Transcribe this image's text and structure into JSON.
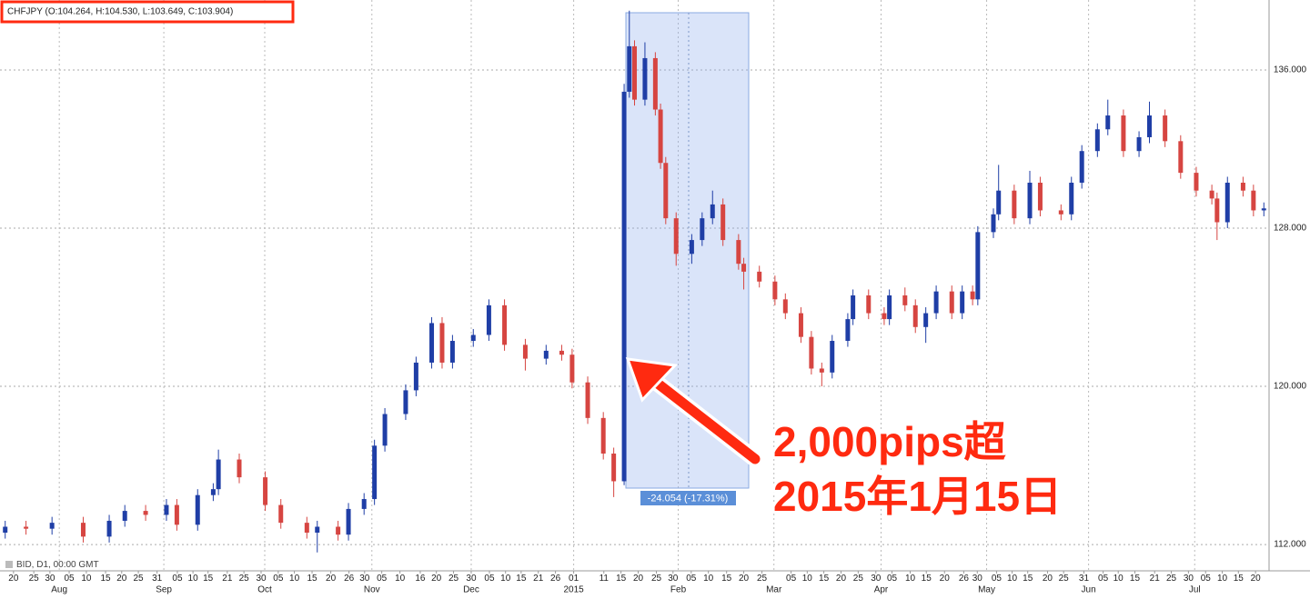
{
  "chart_data": {
    "type": "candlestick",
    "title": "CHFJPY (O:104.264, H:104.530, L:103.649, C:103.904)",
    "footer": "BID, D1, 00:00 GMT",
    "measure_label": "-24.054 (-17.31%)",
    "annotations": [
      "2,000pips超",
      "2015年1月15日"
    ],
    "up_color": "#1f3ea6",
    "down_color": "#d64541",
    "grid": true,
    "ylim": [
      110.67,
      139.54
    ],
    "yticks": [
      {
        "value": 112,
        "label": "112.000"
      },
      {
        "value": 120,
        "label": "120.000"
      },
      {
        "value": 128,
        "label": "128.000"
      },
      {
        "value": 136,
        "label": "136.000"
      }
    ],
    "xlim": [
      0,
      244
    ],
    "xticks": [
      {
        "value": 2.6,
        "label": "20"
      },
      {
        "value": 6.5,
        "label": "25"
      },
      {
        "value": 9.6,
        "label": "30"
      },
      {
        "value": 13.3,
        "label": "05"
      },
      {
        "value": 16.6,
        "label": "10"
      },
      {
        "value": 20.3,
        "label": "15"
      },
      {
        "value": 23.4,
        "label": "20"
      },
      {
        "value": 26.6,
        "label": "25"
      },
      {
        "value": 30.2,
        "label": "31"
      },
      {
        "value": 34.1,
        "label": "05"
      },
      {
        "value": 37.1,
        "label": "10"
      },
      {
        "value": 40.0,
        "label": "15"
      },
      {
        "value": 43.7,
        "label": "21"
      },
      {
        "value": 46.9,
        "label": "25"
      },
      {
        "value": 50.2,
        "label": "30"
      },
      {
        "value": 53.5,
        "label": "05"
      },
      {
        "value": 56.6,
        "label": "10"
      },
      {
        "value": 60.0,
        "label": "15"
      },
      {
        "value": 63.6,
        "label": "20"
      },
      {
        "value": 67.1,
        "label": "26"
      },
      {
        "value": 70.1,
        "label": "30"
      },
      {
        "value": 73.4,
        "label": "05"
      },
      {
        "value": 76.9,
        "label": "10"
      },
      {
        "value": 80.8,
        "label": "16"
      },
      {
        "value": 83.9,
        "label": "20"
      },
      {
        "value": 87.2,
        "label": "25"
      },
      {
        "value": 90.6,
        "label": "30"
      },
      {
        "value": 94.1,
        "label": "05"
      },
      {
        "value": 97.2,
        "label": "10"
      },
      {
        "value": 100.2,
        "label": "15"
      },
      {
        "value": 103.5,
        "label": "21"
      },
      {
        "value": 106.8,
        "label": "26"
      },
      {
        "value": 110.3,
        "label": "01"
      },
      {
        "value": 116.1,
        "label": "11"
      },
      {
        "value": 119.4,
        "label": "15"
      },
      {
        "value": 122.7,
        "label": "20"
      },
      {
        "value": 126.2,
        "label": "25"
      },
      {
        "value": 129.4,
        "label": "30"
      },
      {
        "value": 132.9,
        "label": "05"
      },
      {
        "value": 136.2,
        "label": "10"
      },
      {
        "value": 139.7,
        "label": "15"
      },
      {
        "value": 143.0,
        "label": "20"
      },
      {
        "value": 146.5,
        "label": "25"
      },
      {
        "value": 152.1,
        "label": "05"
      },
      {
        "value": 155.2,
        "label": "10"
      },
      {
        "value": 158.4,
        "label": "15"
      },
      {
        "value": 161.7,
        "label": "20"
      },
      {
        "value": 165.0,
        "label": "25"
      },
      {
        "value": 168.4,
        "label": "30"
      },
      {
        "value": 171.5,
        "label": "05"
      },
      {
        "value": 175.0,
        "label": "10"
      },
      {
        "value": 178.1,
        "label": "15"
      },
      {
        "value": 181.6,
        "label": "20"
      },
      {
        "value": 185.3,
        "label": "26"
      },
      {
        "value": 187.9,
        "label": "30"
      },
      {
        "value": 191.6,
        "label": "05"
      },
      {
        "value": 194.6,
        "label": "10"
      },
      {
        "value": 197.6,
        "label": "15"
      },
      {
        "value": 201.4,
        "label": "20"
      },
      {
        "value": 204.5,
        "label": "25"
      },
      {
        "value": 208.4,
        "label": "31"
      },
      {
        "value": 212.1,
        "label": "05"
      },
      {
        "value": 215.0,
        "label": "10"
      },
      {
        "value": 218.2,
        "label": "15"
      },
      {
        "value": 222.0,
        "label": "21"
      },
      {
        "value": 225.2,
        "label": "25"
      },
      {
        "value": 228.5,
        "label": "30"
      },
      {
        "value": 231.8,
        "label": "05"
      },
      {
        "value": 235.0,
        "label": "10"
      },
      {
        "value": 238.1,
        "label": "15"
      },
      {
        "value": 241.4,
        "label": "20"
      }
    ],
    "month_labels": [
      {
        "value": 11.4,
        "label": "Aug"
      },
      {
        "value": 31.5,
        "label": "Sep"
      },
      {
        "value": 50.9,
        "label": "Oct"
      },
      {
        "value": 71.5,
        "label": "Nov"
      },
      {
        "value": 90.6,
        "label": "Dec"
      },
      {
        "value": 110.3,
        "label": "2015"
      },
      {
        "value": 130.4,
        "label": "Feb"
      },
      {
        "value": 148.8,
        "label": "Mar"
      },
      {
        "value": 169.4,
        "label": "Apr"
      },
      {
        "value": 189.7,
        "label": "May"
      },
      {
        "value": 209.3,
        "label": "Jun"
      },
      {
        "value": 229.7,
        "label": "Jul"
      }
    ],
    "x": [
      1,
      5,
      10,
      16,
      21,
      24,
      28,
      32,
      34,
      38,
      41,
      42,
      46,
      51,
      54,
      59,
      61,
      65,
      67,
      70,
      72,
      74,
      78,
      80,
      83,
      85,
      87,
      91,
      94,
      97,
      101,
      105,
      108,
      110,
      113,
      116,
      118,
      120,
      121,
      122,
      124,
      126,
      127,
      128,
      130,
      133,
      135,
      137,
      139,
      142,
      143,
      146,
      149,
      151,
      154,
      156,
      158,
      160,
      163,
      164,
      167,
      170,
      171,
      174,
      176,
      178,
      180,
      183,
      185,
      187,
      188,
      191,
      192,
      195,
      198,
      200,
      204,
      206,
      208,
      211,
      213,
      216,
      219,
      221,
      224,
      227,
      230,
      233,
      234,
      236,
      239,
      241,
      243
    ],
    "open": [
      112.6,
      112.9,
      112.8,
      113.1,
      112.4,
      113.2,
      113.7,
      113.5,
      114.0,
      113.0,
      114.5,
      114.8,
      116.3,
      115.4,
      114.0,
      113.1,
      112.6,
      112.9,
      112.5,
      113.8,
      114.3,
      117.0,
      118.6,
      119.8,
      121.2,
      123.2,
      121.2,
      122.3,
      122.6,
      124.1,
      122.1,
      121.4,
      121.8,
      121.6,
      120.2,
      118.4,
      116.6,
      115.2,
      134.9,
      137.2,
      134.5,
      136.6,
      134.0,
      131.3,
      128.5,
      126.7,
      127.4,
      128.5,
      129.2,
      127.4,
      126.2,
      125.8,
      125.3,
      124.4,
      123.7,
      122.5,
      120.9,
      120.7,
      122.3,
      123.4,
      124.6,
      123.7,
      123.4,
      124.6,
      124.1,
      123.0,
      123.7,
      124.8,
      123.7,
      124.8,
      124.4,
      127.8,
      128.7,
      129.9,
      128.5,
      130.3,
      128.9,
      128.7,
      130.3,
      131.9,
      133.0,
      133.7,
      131.9,
      132.6,
      133.7,
      132.4,
      130.8,
      129.9,
      129.5,
      128.3,
      130.3,
      129.9,
      128.9
    ],
    "high": [
      113.2,
      113.2,
      113.4,
      113.4,
      113.5,
      114.0,
      114.0,
      114.3,
      114.3,
      114.8,
      115.1,
      116.8,
      116.6,
      115.7,
      114.3,
      113.4,
      113.2,
      113.2,
      114.1,
      114.6,
      117.3,
      118.9,
      120.1,
      121.5,
      123.5,
      123.5,
      122.6,
      122.9,
      124.4,
      124.4,
      122.4,
      122.1,
      122.1,
      121.9,
      120.5,
      118.7,
      116.9,
      135.3,
      139.0,
      137.5,
      137.4,
      136.9,
      134.3,
      131.6,
      128.8,
      127.7,
      128.8,
      129.9,
      129.5,
      127.7,
      126.5,
      126.1,
      125.6,
      124.7,
      124.0,
      122.8,
      121.2,
      122.6,
      123.7,
      124.9,
      124.9,
      124.0,
      124.9,
      125.0,
      124.4,
      124.0,
      125.1,
      125.1,
      125.1,
      125.1,
      128.1,
      129.0,
      131.2,
      130.2,
      130.9,
      130.6,
      129.2,
      130.6,
      132.2,
      133.3,
      134.5,
      134.0,
      132.9,
      134.4,
      134.0,
      132.7,
      131.1,
      130.2,
      129.8,
      130.6,
      130.6,
      130.2,
      129.3
    ],
    "low": [
      112.3,
      112.5,
      112.5,
      112.1,
      112.1,
      112.9,
      113.2,
      113.2,
      112.7,
      112.7,
      114.2,
      114.5,
      115.1,
      113.7,
      112.8,
      112.3,
      111.6,
      112.2,
      112.2,
      113.5,
      114.0,
      116.7,
      118.3,
      119.5,
      120.9,
      120.9,
      120.9,
      122.0,
      122.3,
      121.8,
      120.8,
      121.1,
      121.3,
      119.9,
      118.1,
      116.3,
      114.4,
      115.0,
      134.6,
      134.2,
      134.2,
      133.7,
      131.0,
      128.2,
      126.1,
      126.2,
      127.1,
      128.2,
      127.1,
      125.9,
      124.9,
      125.0,
      124.1,
      123.4,
      122.2,
      120.6,
      120.0,
      120.4,
      122.0,
      123.1,
      123.4,
      123.1,
      123.1,
      123.8,
      122.7,
      122.2,
      123.4,
      123.4,
      123.4,
      124.1,
      124.1,
      127.5,
      128.4,
      128.2,
      128.2,
      128.6,
      128.4,
      128.4,
      130.0,
      131.6,
      132.7,
      131.6,
      131.6,
      132.3,
      132.1,
      130.5,
      129.6,
      129.2,
      127.4,
      128.0,
      129.6,
      128.6,
      128.6
    ],
    "close": [
      112.9,
      112.8,
      113.1,
      112.4,
      113.2,
      113.7,
      113.5,
      114.0,
      113.0,
      114.5,
      114.8,
      116.3,
      115.4,
      114.0,
      113.1,
      112.6,
      112.9,
      112.5,
      113.8,
      114.3,
      117.0,
      118.6,
      119.8,
      121.2,
      123.2,
      121.2,
      122.3,
      122.6,
      124.1,
      122.1,
      121.4,
      121.8,
      121.6,
      120.2,
      118.4,
      116.6,
      115.2,
      134.9,
      137.2,
      134.5,
      136.6,
      134.0,
      131.3,
      128.5,
      126.7,
      127.4,
      128.5,
      129.2,
      127.4,
      126.2,
      125.8,
      125.3,
      124.4,
      123.7,
      122.5,
      120.9,
      120.7,
      122.3,
      123.4,
      124.6,
      123.7,
      123.4,
      124.6,
      124.1,
      123.0,
      123.7,
      124.8,
      123.7,
      124.8,
      124.4,
      127.8,
      128.7,
      129.9,
      128.5,
      130.3,
      128.9,
      128.7,
      130.3,
      131.9,
      133.0,
      133.7,
      131.9,
      132.6,
      133.7,
      132.4,
      130.8,
      129.9,
      129.5,
      128.3,
      130.3,
      129.9,
      128.9,
      129.0
    ]
  }
}
